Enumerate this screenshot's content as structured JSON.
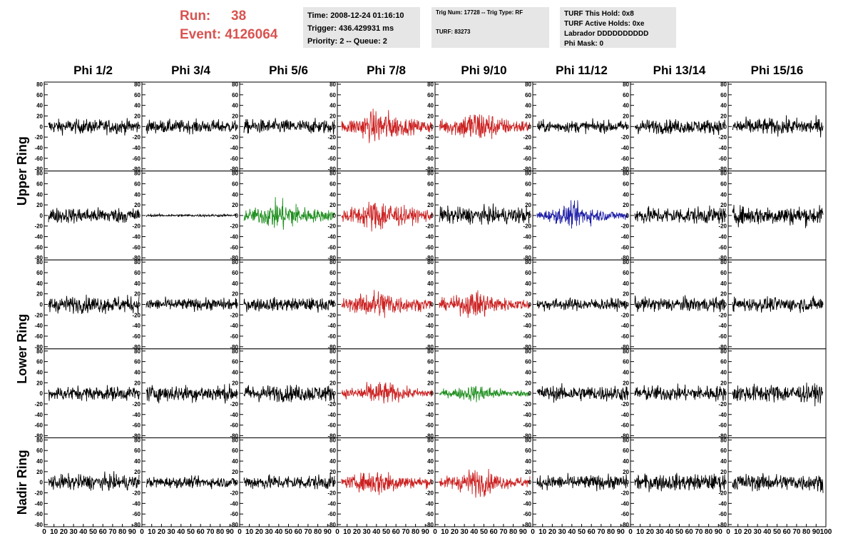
{
  "header": {
    "run_label": "Run:",
    "run_value": "38",
    "event_label": "Event:",
    "event_value": "4126064",
    "time_line": "Time: 2008-12-24 01:16:10",
    "trigger_line": "Trigger: 436.429931 ms",
    "priority_line": "Priority: 2 -- Queue: 2",
    "trig_num_line": "Trig Num: 17728 -- Trig Type: RF",
    "turf_line": "TURF: 83273",
    "turf_hold_line": "TURF This Hold: 0x8",
    "turf_active_line": "TURF Active Holds: 0xe",
    "labrador_line": "Labrador DDDDDDDDDD",
    "phi_mask_line": "Phi Mask: 0"
  },
  "colors": {
    "header_text": "#d9534f",
    "info_bg": "#e6e6e6",
    "trace_default": "#000000",
    "trace_red": "#cc2222",
    "trace_green": "#1f8f1f",
    "trace_blue": "#1f1fa8"
  },
  "chart_data": {
    "type": "line",
    "columns": [
      "Phi 1/2",
      "Phi 3/4",
      "Phi 5/6",
      "Phi 7/8",
      "Phi 9/10",
      "Phi 11/12",
      "Phi 13/14",
      "Phi 15/16"
    ],
    "row_groups": [
      "Upper Ring",
      "Lower Ring",
      "Nadir Ring"
    ],
    "panel_rows": 5,
    "ylim": [
      -80,
      80
    ],
    "xlim": [
      0,
      100
    ],
    "y_ticks": [
      -80,
      -60,
      -40,
      -20,
      0,
      20,
      40,
      60,
      80
    ],
    "x_ticks": [
      0,
      10,
      20,
      30,
      40,
      50,
      60,
      70,
      80,
      90,
      100
    ],
    "trace_colors": [
      [
        "black",
        "black",
        "black",
        "red",
        "red",
        "black",
        "black",
        "black"
      ],
      [
        "black",
        "black",
        "green",
        "red",
        "black",
        "blue",
        "black",
        "black"
      ],
      [
        "black",
        "black",
        "black",
        "red",
        "red",
        "black",
        "black",
        "black"
      ],
      [
        "black",
        "black",
        "black",
        "red",
        "green",
        "black",
        "black",
        "black"
      ],
      [
        "black",
        "black",
        "black",
        "red",
        "red",
        "black",
        "black",
        "black"
      ]
    ],
    "trace_amplitude": [
      [
        12,
        11,
        12,
        20,
        20,
        10,
        12,
        14
      ],
      [
        13,
        2,
        18,
        20,
        14,
        14,
        14,
        16
      ],
      [
        14,
        10,
        11,
        18,
        16,
        10,
        12,
        12
      ],
      [
        12,
        14,
        14,
        14,
        10,
        13,
        13,
        15
      ],
      [
        13,
        9,
        12,
        16,
        16,
        12,
        14,
        14
      ]
    ]
  }
}
